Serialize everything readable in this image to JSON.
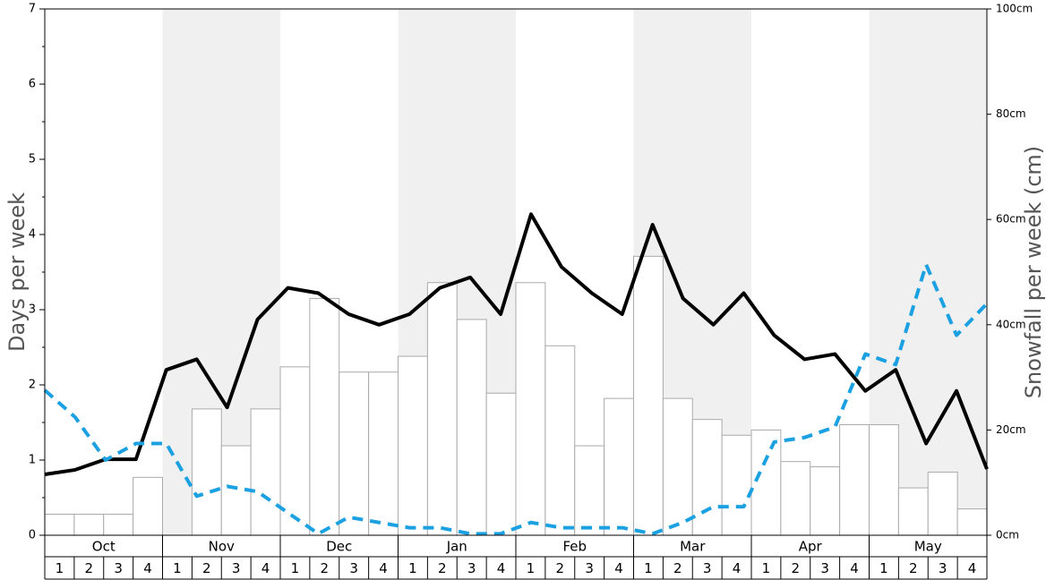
{
  "chart_data": {
    "type": "bar-line",
    "ylabel": "Days per week",
    "y2label": "Snowfall per week (cm)",
    "months": [
      "Oct",
      "Nov",
      "Dec",
      "Jan",
      "Feb",
      "Mar",
      "Apr",
      "May"
    ],
    "categories": [
      "1",
      "2",
      "3",
      "4",
      "1",
      "2",
      "3",
      "4",
      "1",
      "2",
      "3",
      "4",
      "1",
      "2",
      "3",
      "4",
      "1",
      "2",
      "3",
      "4",
      "1",
      "2",
      "3",
      "4",
      "1",
      "2",
      "3",
      "4",
      "1",
      "2",
      "3",
      "4"
    ],
    "ylim": [
      0,
      7
    ],
    "yticks": [
      0,
      1,
      2,
      3,
      4,
      5,
      6,
      7
    ],
    "yminor_ticks": [
      0.5,
      1.5,
      2.5,
      3.5,
      4.5,
      5.5,
      6.5
    ],
    "y2lim": [
      0,
      100
    ],
    "y2ticks": [
      {
        "value": 0,
        "label": "0cm"
      },
      {
        "value": 20,
        "label": "20cm"
      },
      {
        "value": 40,
        "label": "40cm"
      },
      {
        "value": 60,
        "label": "60cm"
      },
      {
        "value": 80,
        "label": "80cm"
      },
      {
        "value": 100,
        "label": "100cm"
      }
    ],
    "series": [
      {
        "kind": "bar",
        "axis": "y2",
        "color": "#ffffff",
        "edge": "#aaaaaa",
        "values": [
          4,
          4,
          4,
          11,
          0,
          24,
          17,
          24,
          32,
          45,
          31,
          31,
          34,
          48,
          41,
          27,
          48,
          36,
          17,
          26,
          53,
          26,
          22,
          19,
          20,
          14,
          13,
          21,
          21,
          9,
          12,
          5
        ]
      },
      {
        "kind": "line",
        "color": "#000000",
        "dashed": false,
        "values": [
          0.81,
          0.87,
          1.01,
          1.01,
          2.2,
          2.34,
          1.7,
          2.87,
          3.29,
          3.22,
          2.94,
          2.8,
          2.94,
          3.29,
          3.43,
          2.94,
          4.27,
          3.57,
          3.22,
          2.94,
          4.13,
          3.15,
          2.8,
          3.22,
          2.66,
          2.34,
          2.41,
          1.92,
          2.2,
          1.22,
          1.92,
          0.88
        ]
      },
      {
        "kind": "line",
        "color": "#1ba1e2",
        "dashed": true,
        "values": [
          1.93,
          1.57,
          1.0,
          1.22,
          1.22,
          0.52,
          0.65,
          0.58,
          0.3,
          0.02,
          0.24,
          0.17,
          0.1,
          0.1,
          0.02,
          0.02,
          0.17,
          0.1,
          0.1,
          0.1,
          0.02,
          0.17,
          0.38,
          0.38,
          1.24,
          1.3,
          1.44,
          2.41,
          2.27,
          3.6,
          2.66,
          3.08
        ]
      }
    ]
  }
}
